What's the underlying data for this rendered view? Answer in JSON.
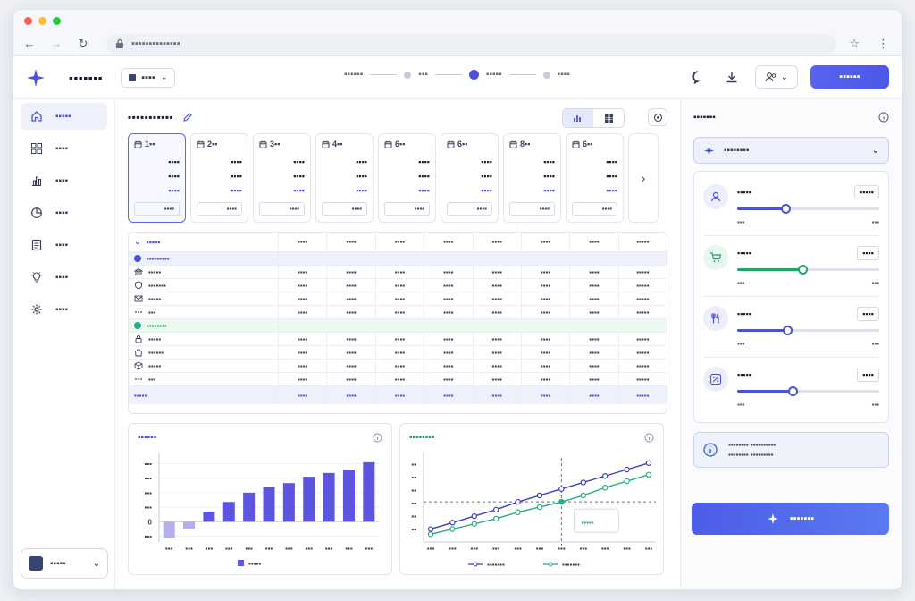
{
  "browser": {
    "url": "▪▪▪▪▪▪▪▪▪▪▪▪▪▪"
  },
  "header": {
    "app_name": "▪▪▪▪▪▪▪",
    "project": "▪▪▪▪",
    "steps": [
      "▪▪▪▪▪▪",
      "▪▪▪",
      "▪▪▪▪▪",
      "▪▪▪▪"
    ],
    "primary_button": "▪▪▪▪▪▪"
  },
  "sidebar": {
    "items": [
      {
        "label": "▪▪▪▪▪",
        "icon": "home-icon"
      },
      {
        "label": "▪▪▪▪",
        "icon": "grid-icon"
      },
      {
        "label": "▪▪▪▪",
        "icon": "bar-chart-icon"
      },
      {
        "label": "▪▪▪▪",
        "icon": "pie-chart-icon"
      },
      {
        "label": "▪▪▪▪",
        "icon": "document-icon"
      },
      {
        "label": "▪▪▪▪",
        "icon": "lightbulb-icon"
      },
      {
        "label": "▪▪▪▪",
        "icon": "gear-icon"
      }
    ],
    "workspace": "▪▪▪▪▪"
  },
  "main": {
    "title": "▪▪▪▪▪▪▪▪▪▪▪"
  },
  "cards": [
    {
      "label": "1▪▪",
      "v1": "▪▪▪▪",
      "v2": "▪▪▪▪",
      "v3": "▪▪▪▪",
      "input": "▪▪▪▪"
    },
    {
      "label": "2▪▪",
      "v1": "▪▪▪▪",
      "v2": "▪▪▪▪",
      "v3": "▪▪▪▪",
      "input": "▪▪▪▪"
    },
    {
      "label": "3▪▪",
      "v1": "▪▪▪▪",
      "v2": "▪▪▪▪",
      "v3": "▪▪▪▪",
      "input": "▪▪▪▪"
    },
    {
      "label": "4▪▪",
      "v1": "▪▪▪▪",
      "v2": "▪▪▪▪",
      "v3": "▪▪▪▪",
      "input": "▪▪▪▪"
    },
    {
      "label": "6▪▪",
      "v1": "▪▪▪▪",
      "v2": "▪▪▪▪",
      "v3": "▪▪▪▪",
      "input": "▪▪▪▪"
    },
    {
      "label": "6▪▪",
      "v1": "▪▪▪▪",
      "v2": "▪▪▪▪",
      "v3": "▪▪▪▪",
      "input": "▪▪▪▪"
    },
    {
      "label": "8▪▪",
      "v1": "▪▪▪▪",
      "v2": "▪▪▪▪",
      "v3": "▪▪▪▪",
      "input": "▪▪▪▪"
    },
    {
      "label": "6▪▪",
      "v1": "▪▪▪▪",
      "v2": "▪▪▪▪",
      "v3": "▪▪▪▪",
      "input": "▪▪▪▪"
    }
  ],
  "table": {
    "group_label": "▪▪▪▪▪",
    "columns": [
      "▪▪▪▪",
      "▪▪▪▪",
      "▪▪▪▪",
      "▪▪▪▪",
      "▪▪▪▪",
      "▪▪▪▪",
      "▪▪▪▪",
      "▪▪▪▪▪"
    ],
    "rows": [
      {
        "type": "group-blue",
        "label": "▪▪▪▪▪▪▪▪▪",
        "icon": "dot-blue",
        "cells": [
          "",
          "",
          "",
          "",
          "",
          "",
          "",
          ""
        ]
      },
      {
        "type": "row",
        "label": "▪▪▪▪▪",
        "icon": "bank-icon",
        "cells": [
          "▪▪▪▪",
          "▪▪▪▪",
          "▪▪▪▪",
          "▪▪▪▪",
          "▪▪▪▪",
          "▪▪▪▪",
          "▪▪▪▪",
          "▪▪▪▪▪"
        ]
      },
      {
        "type": "row",
        "label": "▪▪▪▪▪▪▪",
        "icon": "shield-icon",
        "cells": [
          "▪▪▪▪",
          "▪▪▪▪",
          "▪▪▪▪",
          "▪▪▪▪",
          "▪▪▪▪",
          "▪▪▪▪",
          "▪▪▪▪",
          "▪▪▪▪▪"
        ]
      },
      {
        "type": "row",
        "label": "▪▪▪▪▪",
        "icon": "mail-icon",
        "cells": [
          "▪▪▪▪",
          "▪▪▪▪",
          "▪▪▪▪",
          "▪▪▪▪",
          "▪▪▪▪",
          "▪▪▪▪",
          "▪▪▪▪",
          "▪▪▪▪▪"
        ]
      },
      {
        "type": "row",
        "label": "▪▪▪",
        "icon": "more-icon",
        "cells": [
          "▪▪▪▪",
          "▪▪▪▪",
          "▪▪▪▪",
          "▪▪▪▪",
          "▪▪▪▪",
          "▪▪▪▪",
          "▪▪▪▪",
          "▪▪▪▪▪"
        ]
      },
      {
        "type": "group-green",
        "label": "▪▪▪▪▪▪▪▪",
        "icon": "dot-green",
        "cells": [
          "",
          "",
          "",
          "",
          "",
          "",
          "",
          ""
        ]
      },
      {
        "type": "row",
        "label": "▪▪▪▪▪",
        "icon": "lock-icon",
        "cells": [
          "▪▪▪▪",
          "▪▪▪▪",
          "▪▪▪▪",
          "▪▪▪▪",
          "▪▪▪▪",
          "▪▪▪▪",
          "▪▪▪▪",
          "▪▪▪▪▪"
        ]
      },
      {
        "type": "row",
        "label": "▪▪▪▪▪▪",
        "icon": "bag-icon",
        "cells": [
          "▪▪▪▪",
          "▪▪▪▪",
          "▪▪▪▪",
          "▪▪▪▪",
          "▪▪▪▪",
          "▪▪▪▪",
          "▪▪▪▪",
          "▪▪▪▪▪"
        ]
      },
      {
        "type": "row",
        "label": "▪▪▪▪▪",
        "icon": "box-icon",
        "cells": [
          "▪▪▪▪",
          "▪▪▪▪",
          "▪▪▪▪",
          "▪▪▪▪",
          "▪▪▪▪",
          "▪▪▪▪",
          "▪▪▪▪",
          "▪▪▪▪▪"
        ]
      },
      {
        "type": "row",
        "label": "▪▪▪",
        "icon": "more-icon",
        "cells": [
          "▪▪▪▪",
          "▪▪▪▪",
          "▪▪▪▪",
          "▪▪▪▪",
          "▪▪▪▪",
          "▪▪▪▪",
          "▪▪▪▪",
          "▪▪▪▪▪"
        ]
      },
      {
        "type": "total",
        "label": "▪▪▪▪▪",
        "icon": "",
        "cells": [
          "▪▪▪▪",
          "▪▪▪▪",
          "▪▪▪▪",
          "▪▪▪▪",
          "▪▪▪▪",
          "▪▪▪▪",
          "▪▪▪▪",
          "▪▪▪▪▪"
        ]
      }
    ]
  },
  "bar_chart": {
    "title": "▪▪▪▪▪▪",
    "y_ticks": [
      "▪▪▪",
      "▪▪▪",
      "▪▪▪",
      "▪▪▪",
      "0",
      "▪▪▪"
    ],
    "x_ticks": [
      "▪▪▪",
      "▪▪▪",
      "▪▪▪",
      "▪▪▪",
      "▪▪▪",
      "▪▪▪",
      "▪▪▪",
      "▪▪▪",
      "▪▪▪",
      "▪▪▪",
      "▪▪▪"
    ],
    "values": [
      -0.55,
      -0.25,
      0.35,
      0.68,
      1.0,
      1.2,
      1.33,
      1.55,
      1.68,
      1.8,
      2.05
    ],
    "legend": "▪▪▪▪▪",
    "color": "#5b55e0"
  },
  "line_chart": {
    "title": "▪▪▪▪▪▪▪▪",
    "y_ticks": [
      "▪▪",
      "▪▪",
      "▪▪",
      "▪▪",
      "▪▪",
      "▪▪"
    ],
    "x_ticks": [
      "▪▪▪",
      "▪▪▪",
      "▪▪▪",
      "▪▪▪",
      "▪▪▪",
      "▪▪▪",
      "▪▪▪",
      "▪▪▪",
      "▪▪▪",
      "▪▪▪",
      "▪▪▪"
    ],
    "series_a": [
      1.0,
      1.5,
      2.0,
      2.5,
      3.1,
      3.6,
      4.1,
      4.6,
      5.1,
      5.6,
      6.1
    ],
    "series_b": [
      0.6,
      1.0,
      1.4,
      1.8,
      2.3,
      2.7,
      3.1,
      3.6,
      4.2,
      4.7,
      5.2
    ],
    "legend_a": "▪▪▪▪▪▪▪",
    "legend_b": "▪▪▪▪▪▪▪",
    "tooltip": "▪▪▪▪▪",
    "color_a": "#3d3fc4",
    "color_b": "#22b07d"
  },
  "right_panel": {
    "title": "▪▪▪▪▪▪▪",
    "scenario": "▪▪▪▪▪▪▪▪",
    "sliders": [
      {
        "label": "▪▪▪▪▪",
        "value": "▪▪▪▪▪",
        "min": "▪▪▪",
        "max": "▪▪▪",
        "level": 0.34,
        "color": "#4a52d6",
        "icon": "users-icon",
        "icon_bg": "#eceefb"
      },
      {
        "label": "▪▪▪▪▪",
        "value": "▪▪▪▪",
        "min": "▪▪▪",
        "max": "▪▪▪",
        "level": 0.46,
        "color": "#1fa86a",
        "icon": "cart-icon",
        "icon_bg": "#e7f6ee"
      },
      {
        "label": "▪▪▪▪▪",
        "value": "▪▪▪▪",
        "min": "▪▪▪",
        "max": "▪▪▪",
        "level": 0.35,
        "color": "#4a52d6",
        "icon": "utensils-icon",
        "icon_bg": "#eceefb"
      },
      {
        "label": "▪▪▪▪▪",
        "value": "▪▪▪▪",
        "min": "▪▪▪",
        "max": "▪▪▪",
        "level": 0.39,
        "color": "#4a52d6",
        "icon": "percent-icon",
        "icon_bg": "#eceefb"
      }
    ],
    "info_line1": "▪▪▪▪▪▪▪▪ ▪▪▪▪▪▪▪▪▪▪",
    "info_line2": "▪▪▪▪▪▪▪▪ ▪▪▪▪▪▪▪▪▪",
    "generate": "▪▪▪▪▪▪▪"
  }
}
